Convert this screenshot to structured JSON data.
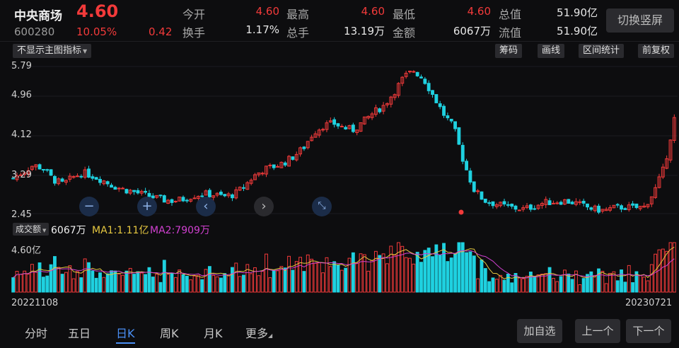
{
  "header": {
    "name": "中央商场",
    "price": "4.60",
    "code": "600280",
    "change_pct": "10.05%",
    "change": "0.42",
    "quotes": [
      {
        "label": "今开",
        "value": "4.60",
        "color": "red"
      },
      {
        "label": "最高",
        "value": "4.60",
        "color": "red"
      },
      {
        "label": "最低",
        "value": "4.60",
        "color": "red"
      },
      {
        "label": "总值",
        "value": "51.90亿",
        "color": "white"
      },
      {
        "label": "换手",
        "value": "1.17%",
        "color": "white"
      },
      {
        "label": "总手",
        "value": "13.19万",
        "color": "white"
      },
      {
        "label": "金额",
        "value": "6067万",
        "color": "white"
      },
      {
        "label": "流值",
        "value": "51.90亿",
        "color": "white"
      }
    ],
    "switch_label": "切换竖屏"
  },
  "toolbar": {
    "indicator_label": "不显示主图指标",
    "buttons": [
      "筹码",
      "画线",
      "区间统计",
      "前复权"
    ]
  },
  "controls": {
    "zoom_out": "−",
    "zoom_in": "+",
    "prev": "‹",
    "next": "›",
    "fit": "⤡"
  },
  "volume": {
    "select_label": "成交额",
    "value": "6067万",
    "ma1": "MA1:1.11亿",
    "ma2": "MA2:7909万",
    "max_label": "4.60亿"
  },
  "dates": {
    "start": "20221108",
    "end": "20230721"
  },
  "bottom": {
    "tabs": [
      {
        "label": "分时",
        "active": false
      },
      {
        "label": "五日",
        "active": false
      },
      {
        "label": "日K",
        "active": true
      },
      {
        "label": "周K",
        "active": false
      },
      {
        "label": "月K",
        "active": false
      },
      {
        "label": "更多",
        "active": false
      }
    ],
    "add_watch": "加自选",
    "prev_stock": "上一个",
    "next_stock": "下一个"
  },
  "colors": {
    "up": "#f23a3a",
    "down": "#1fd1e0",
    "accent": "#4a8ff5",
    "ma1": "#e6c840",
    "ma2": "#d040d0"
  },
  "chart_data": {
    "type": "candlestick",
    "price_axis_labels": [
      "5.79",
      "4.96",
      "4.12",
      "3.29",
      "2.45"
    ],
    "ylim": [
      2.45,
      5.79
    ],
    "xrange": [
      "20221108",
      "20230721"
    ],
    "close_path": [
      3.25,
      3.4,
      3.55,
      3.48,
      3.22,
      3.12,
      3.28,
      3.38,
      3.3,
      3.2,
      3.08,
      3.0,
      2.95,
      2.88,
      2.82,
      2.76,
      2.74,
      2.78,
      2.86,
      2.9,
      2.88,
      2.84,
      2.88,
      3.05,
      3.3,
      3.45,
      3.52,
      3.6,
      3.75,
      3.95,
      4.3,
      4.45,
      4.5,
      4.4,
      4.35,
      4.55,
      4.75,
      4.9,
      5.2,
      5.55,
      5.7,
      5.5,
      5.1,
      4.7,
      4.4,
      3.6,
      3.0,
      2.75,
      2.68,
      2.62,
      2.58,
      2.55,
      2.62,
      2.7,
      2.72,
      2.74,
      2.7,
      2.62,
      2.55,
      2.52,
      2.58,
      2.6,
      2.58,
      2.6,
      2.95,
      3.5,
      4.6
    ],
    "volume_axis_labels": [
      "4.60亿"
    ],
    "volume_last": "6067万",
    "ma1": "1.11亿",
    "ma2": "7909万"
  }
}
